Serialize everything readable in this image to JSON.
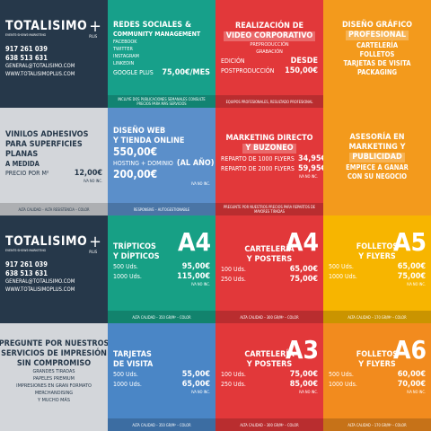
{
  "tiles": [
    {
      "color": "#26384a",
      "ink": "#ffffff",
      "logo": {
        "name": "TOTALISIMO",
        "plus": "+",
        "tagline": "EVENTS·SHOWS·MARKETING",
        "sub": "PLUS"
      },
      "parts": [
        {
          "t": "917 261 039"
        },
        {
          "t": "638 513 631"
        },
        {
          "s2": "GENERAL@TOTALISIMO.COM"
        },
        {
          "s2": "WWW.TOTALISIMOPLUS.COM"
        }
      ]
    },
    {
      "color": "#17a08a",
      "ink": "#ffffff",
      "parts": [
        {
          "h": "REDES SOCIALES &"
        },
        {
          "hs": "COMMUNITY MANAGEMENT"
        },
        {
          "i": "FACEBOOK"
        },
        {
          "i": "TWITTER"
        },
        {
          "i": "INSTAGRAM"
        },
        {
          "i": "LINKEDIN"
        },
        {
          "row": [
            "GOOGLE PLUS",
            "75,00€/MES"
          ]
        }
      ],
      "footer": "INCLUYE DOS PUBLICACIONES SEMANALES CONSULTE PRECIOS PARA MÁS SERVICIOS"
    },
    {
      "color": "#e2383a",
      "ink": "#ffffff",
      "parts": [
        {
          "h": "REALIZACIÓN DE"
        },
        {
          "hb": "VIDEO CORPORATIVO"
        },
        {
          "i": "PREPRODUCCIÓN"
        },
        {
          "i": "GRABACIÓN"
        },
        {
          "row": [
            "EDICIÓN",
            "DESDE"
          ]
        },
        {
          "row": [
            "POSTPRODUCCIÓN",
            "150,00€"
          ]
        }
      ],
      "footer": "EQUIPOS PROFESIONALES, RESULTADO PROFESIONAL"
    },
    {
      "color": "#f39a1c",
      "ink": "#ffffff",
      "parts": [
        {
          "h": "DISEÑO GRÁFICO"
        },
        {
          "hb": "PROFESIONAL"
        },
        {
          "t": "CARTELERÍA"
        },
        {
          "t": "FOLLETOS"
        },
        {
          "t": "TARJETAS DE VISITA"
        },
        {
          "t": "PACKAGING"
        }
      ]
    },
    {
      "color": "#d3d6da",
      "ink": "#26384a",
      "parts": [
        {
          "h": "VINILOS ADHESIVOS"
        },
        {
          "h": "PARA SUPERFICIES"
        },
        {
          "h": "PLANAS"
        },
        {
          "t": "A MEDIDA"
        },
        {
          "row": [
            "PRECIO POR M²",
            "12,00€"
          ]
        },
        {
          "s": "IVA NO INC."
        }
      ],
      "footer": "ALTA CALIDAD – ALTA RESISTENCIA – COLOR"
    },
    {
      "color": "#5b8fca",
      "ink": "#ffffff",
      "parts": [
        {
          "h": "DISEÑO WEB"
        },
        {
          "h": "Y TIENDA ONLINE"
        },
        {
          "p": "550,00€"
        },
        {
          "row": [
            "HOSTING + DOMINIO",
            "(AL AÑO)"
          ]
        },
        {
          "p": "200,00€"
        },
        {
          "s": "IVA NO INC."
        }
      ],
      "footer": "RESPONSIVE – AUTOGESTIONABLE"
    },
    {
      "color": "#e2383a",
      "ink": "#ffffff",
      "parts": [
        {
          "h": "MARKETING DIRECTO"
        },
        {
          "hb": "Y BUZONEO"
        },
        {
          "row": [
            "REPARTO DE 1000 FLYERS",
            "34,95€"
          ]
        },
        {
          "row": [
            "REPARTO DE 2000 FLYERS",
            "59,95€"
          ]
        },
        {
          "s": "IVA NO INC."
        }
      ],
      "footer": "PREGUNTE POR NUESTROS PRECIOS PARA REPARTOS DE MAYORES TIRADAS"
    },
    {
      "color": "#f39a1c",
      "ink": "#ffffff",
      "parts": [
        {
          "h": "ASESORÍA EN"
        },
        {
          "h": "MARKETING Y"
        },
        {
          "hb": "PUBLICIDAD"
        },
        {
          "t": "EMPIECE A GANAR"
        },
        {
          "t": "CON SU NEGOCIO"
        }
      ]
    },
    {
      "color": "#26384a",
      "ink": "#ffffff",
      "logo": {
        "name": "TOTALISIMO",
        "plus": "+",
        "tagline": "EVENTS·SHOWS·MARKETING",
        "sub": "PLUS"
      },
      "parts": [
        {
          "t": "917 261 039"
        },
        {
          "t": "638 513 631"
        },
        {
          "s2": "GENERAL@TOTALISIMO.COM"
        },
        {
          "s2": "WWW.TOTALISIMOPLUS.COM"
        }
      ]
    },
    {
      "color": "#17a085",
      "ink": "#ffffff",
      "size": "A4",
      "parts": [
        {
          "h": "TRÍPTICOS"
        },
        {
          "h": "Y DÍPTICOS"
        },
        {
          "row": [
            "500 Uds.",
            "95,00€"
          ]
        },
        {
          "row": [
            "1000 Uds.",
            "115,00€"
          ]
        },
        {
          "s": "IVA NO INC."
        }
      ],
      "footer": "ALTA CALIDAD – 350 GR/M² – COLOR"
    },
    {
      "color": "#e2383a",
      "ink": "#ffffff",
      "size": "A4",
      "parts": [
        {
          "h": "CARTELERÍA"
        },
        {
          "h": "Y POSTERS"
        },
        {
          "row": [
            "100 Uds.",
            "65,00€"
          ]
        },
        {
          "row": [
            "250 Uds.",
            "75,00€"
          ]
        }
      ],
      "footer": "ALTA CALIDAD – 300 GR/M² – COLOR"
    },
    {
      "color": "#f7b500",
      "ink": "#ffffff",
      "size": "A5",
      "parts": [
        {
          "h": "FOLLETOS"
        },
        {
          "h": "Y FLYERS"
        },
        {
          "row": [
            "500 Uds.",
            "65,00€"
          ]
        },
        {
          "row": [
            "1000 Uds.",
            "75,00€"
          ]
        },
        {
          "s": "IVA NO INC."
        }
      ],
      "footer": "ALTA CALIDAD – 170 GR/M² – COLOR"
    },
    {
      "color": "#d3d6da",
      "ink": "#26384a",
      "parts": [
        {
          "h": "PREGUNTE POR NUESTROS"
        },
        {
          "h": "SERVICIOS DE IMPRESIÓN"
        },
        {
          "h": "SIN COMPROMISO"
        },
        {
          "i": "GRANDES TIRADAS"
        },
        {
          "i": "PAPELES PREMIUM"
        },
        {
          "i": "IMPRESIONES EN GRAN FORMATO"
        },
        {
          "i": "MERCHANDISING"
        },
        {
          "i": "Y MUCHO MÁS"
        }
      ]
    },
    {
      "color": "#4a86c6",
      "ink": "#ffffff",
      "parts": [
        {
          "h": "TARJETAS"
        },
        {
          "h": "DE VISITA"
        },
        {
          "row": [
            "500 Uds.",
            "55,00€"
          ]
        },
        {
          "row": [
            "1000 Uds.",
            "65,00€"
          ]
        },
        {
          "s": "IVA NO INC."
        }
      ],
      "footer": "ALTA CALIDAD – 350 GR/M² – COLOR"
    },
    {
      "color": "#e2383a",
      "ink": "#ffffff",
      "size": "A3",
      "parts": [
        {
          "h": "CARTELERÍA"
        },
        {
          "h": "Y POSTERS"
        },
        {
          "row": [
            "100 Uds.",
            "75,00€"
          ]
        },
        {
          "row": [
            "250 Uds.",
            "85,00€"
          ]
        },
        {
          "s": "IVA NO INC."
        }
      ],
      "footer": "ALTA CALIDAD – 300 GR/M² – COLOR"
    },
    {
      "color": "#f28b1e",
      "ink": "#ffffff",
      "size": "A6",
      "parts": [
        {
          "h": "FOLLETOS"
        },
        {
          "h": "Y FLYERS"
        },
        {
          "row": [
            "500 Uds.",
            "60,00€"
          ]
        },
        {
          "row": [
            "1000 Uds.",
            "70,00€"
          ]
        },
        {
          "s": "IVA NO INC."
        }
      ],
      "footer": "ALTA CALIDAD – 170 GR/M² – COLOR"
    }
  ]
}
